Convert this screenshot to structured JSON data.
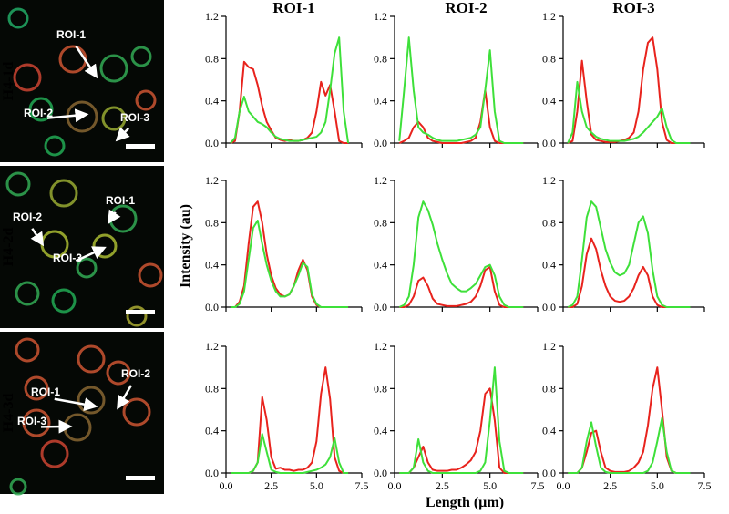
{
  "figure": {
    "y_label": "Intensity (au)",
    "x_label": "Length (µm)",
    "images": [
      {
        "row_label": "H4-1d",
        "rois": [
          "ROI-1",
          "ROI-2",
          "ROI-3"
        ]
      },
      {
        "row_label": "H4-2d",
        "rois": [
          "ROI-1",
          "ROI-2",
          "ROI-3"
        ]
      },
      {
        "row_label": "H4-3d",
        "rois": [
          "ROI-1",
          "ROI-2",
          "ROI-3"
        ]
      }
    ]
  },
  "chart_data": [
    {
      "type": "line",
      "title": "ROI-1",
      "x": [
        0.25,
        0.5,
        0.75,
        1,
        1.25,
        1.5,
        1.75,
        2,
        2.25,
        2.5,
        2.75,
        3,
        3.25,
        3.5,
        3.75,
        4,
        4.25,
        4.5,
        4.75,
        5,
        5.25,
        5.5,
        5.75,
        6,
        6.25,
        6.5,
        6.75
      ],
      "series": [
        {
          "color": "#e8231d",
          "values": [
            0,
            0.02,
            0.3,
            0.77,
            0.72,
            0.7,
            0.55,
            0.35,
            0.2,
            0.12,
            0.05,
            0.03,
            0.02,
            0.03,
            0.02,
            0.02,
            0.03,
            0.05,
            0.1,
            0.3,
            0.58,
            0.45,
            0.55,
            0.3,
            0.02,
            0,
            0
          ]
        },
        {
          "color": "#3ee03a",
          "values": [
            0,
            0.05,
            0.3,
            0.44,
            0.3,
            0.25,
            0.2,
            0.18,
            0.15,
            0.1,
            0.06,
            0.04,
            0.03,
            0.02,
            0.02,
            0.02,
            0.03,
            0.04,
            0.05,
            0.06,
            0.1,
            0.2,
            0.5,
            0.85,
            1.0,
            0.3,
            0
          ]
        }
      ],
      "xlim": [
        0,
        7.5
      ],
      "ylim": [
        0,
        1.2
      ],
      "xticks": [
        0,
        2.5,
        5,
        7.5
      ],
      "yticks": [
        {
          "value": 0,
          "label": "0.0"
        },
        0.4,
        0.8,
        1.2
      ]
    },
    {
      "type": "line",
      "title": "ROI-2",
      "x": [
        0.25,
        0.5,
        0.75,
        1,
        1.25,
        1.5,
        1.75,
        2,
        2.25,
        2.5,
        2.75,
        3,
        3.25,
        3.5,
        3.75,
        4,
        4.25,
        4.5,
        4.75,
        5,
        5.25,
        5.5,
        5.75,
        6,
        6.25,
        6.5,
        6.75
      ],
      "series": [
        {
          "color": "#e8231d",
          "values": [
            0,
            0.02,
            0.05,
            0.15,
            0.2,
            0.15,
            0.05,
            0.02,
            0.01,
            0,
            0,
            0,
            0,
            0,
            0.01,
            0.02,
            0.05,
            0.2,
            0.5,
            0.15,
            0.02,
            0,
            0,
            0,
            0,
            0,
            0
          ]
        },
        {
          "color": "#3ee03a",
          "values": [
            0.02,
            0.5,
            1.0,
            0.5,
            0.15,
            0.1,
            0.08,
            0.05,
            0.03,
            0.02,
            0.02,
            0.02,
            0.02,
            0.03,
            0.04,
            0.05,
            0.08,
            0.15,
            0.5,
            0.88,
            0.3,
            0.02,
            0,
            0,
            0,
            0,
            0
          ]
        }
      ],
      "xlim": [
        0,
        7.5
      ],
      "ylim": [
        0,
        1.2
      ],
      "xticks": [
        0,
        2.5,
        5,
        7.5
      ],
      "yticks": [
        {
          "value": 0,
          "label": "0.0"
        },
        0.4,
        0.8,
        1.2
      ]
    },
    {
      "type": "line",
      "title": "ROI-3",
      "x": [
        0.25,
        0.5,
        0.75,
        1,
        1.25,
        1.5,
        1.75,
        2,
        2.25,
        2.5,
        2.75,
        3,
        3.25,
        3.5,
        3.75,
        4,
        4.25,
        4.5,
        4.75,
        5,
        5.25,
        5.5,
        5.75,
        6,
        6.25,
        6.5,
        6.75
      ],
      "series": [
        {
          "color": "#e8231d",
          "values": [
            0,
            0.02,
            0.3,
            0.78,
            0.4,
            0.08,
            0.03,
            0.02,
            0.01,
            0.01,
            0.01,
            0.02,
            0.03,
            0.05,
            0.1,
            0.3,
            0.7,
            0.95,
            1.0,
            0.7,
            0.2,
            0.03,
            0,
            0,
            0,
            0,
            0
          ]
        },
        {
          "color": "#3ee03a",
          "values": [
            0,
            0.1,
            0.58,
            0.3,
            0.15,
            0.1,
            0.06,
            0.04,
            0.03,
            0.02,
            0.02,
            0.02,
            0.02,
            0.03,
            0.04,
            0.06,
            0.1,
            0.15,
            0.2,
            0.25,
            0.33,
            0.15,
            0.03,
            0,
            0,
            0,
            0
          ]
        }
      ],
      "xlim": [
        0,
        7.5
      ],
      "ylim": [
        0,
        1.2
      ],
      "xticks": [
        0,
        2.5,
        5,
        7.5
      ],
      "yticks": [
        {
          "value": 0,
          "label": "0.0"
        },
        0.4,
        0.8,
        1.2
      ]
    },
    {
      "type": "line",
      "x": [
        0.25,
        0.5,
        0.75,
        1,
        1.25,
        1.5,
        1.75,
        2,
        2.25,
        2.5,
        2.75,
        3,
        3.25,
        3.5,
        3.75,
        4,
        4.25,
        4.5,
        4.75,
        5,
        5.25,
        5.5,
        5.75,
        6,
        6.25,
        6.5,
        6.75
      ],
      "series": [
        {
          "color": "#e8231d",
          "values": [
            0,
            0,
            0.05,
            0.2,
            0.6,
            0.95,
            1.0,
            0.8,
            0.5,
            0.3,
            0.18,
            0.12,
            0.1,
            0.12,
            0.2,
            0.35,
            0.45,
            0.35,
            0.1,
            0.02,
            0,
            0,
            0,
            0,
            0,
            0,
            0
          ]
        },
        {
          "color": "#3ee03a",
          "values": [
            0,
            0,
            0.03,
            0.15,
            0.45,
            0.75,
            0.82,
            0.6,
            0.4,
            0.25,
            0.15,
            0.1,
            0.1,
            0.12,
            0.2,
            0.3,
            0.42,
            0.38,
            0.12,
            0.03,
            0,
            0,
            0,
            0,
            0,
            0,
            0
          ]
        }
      ],
      "xlim": [
        0,
        7.5
      ],
      "ylim": [
        0,
        1.2
      ],
      "xticks": [
        0,
        2.5,
        5,
        7.5
      ],
      "yticks": [
        {
          "value": 0,
          "label": "0.0"
        },
        0.4,
        0.8,
        1.2
      ]
    },
    {
      "type": "line",
      "x": [
        0.25,
        0.5,
        0.75,
        1,
        1.25,
        1.5,
        1.75,
        2,
        2.25,
        2.5,
        2.75,
        3,
        3.25,
        3.5,
        3.75,
        4,
        4.25,
        4.5,
        4.75,
        5,
        5.25,
        5.5,
        5.75,
        6,
        6.25,
        6.5,
        6.75
      ],
      "series": [
        {
          "color": "#e8231d",
          "values": [
            0,
            0,
            0.02,
            0.1,
            0.25,
            0.28,
            0.2,
            0.08,
            0.03,
            0.02,
            0.01,
            0.01,
            0.01,
            0.02,
            0.03,
            0.05,
            0.1,
            0.2,
            0.35,
            0.38,
            0.15,
            0.02,
            0,
            0,
            0,
            0,
            0
          ]
        },
        {
          "color": "#3ee03a",
          "values": [
            0,
            0.02,
            0.1,
            0.4,
            0.85,
            1.0,
            0.92,
            0.78,
            0.6,
            0.45,
            0.32,
            0.22,
            0.18,
            0.15,
            0.15,
            0.18,
            0.22,
            0.3,
            0.38,
            0.4,
            0.3,
            0.1,
            0.02,
            0,
            0,
            0,
            0
          ]
        }
      ],
      "xlim": [
        0,
        7.5
      ],
      "ylim": [
        0,
        1.2
      ],
      "xticks": [
        0,
        2.5,
        5,
        7.5
      ],
      "yticks": [
        {
          "value": 0,
          "label": "0.0"
        },
        0.4,
        0.8,
        1.2
      ]
    },
    {
      "type": "line",
      "x": [
        0.25,
        0.5,
        0.75,
        1,
        1.25,
        1.5,
        1.75,
        2,
        2.25,
        2.5,
        2.75,
        3,
        3.25,
        3.5,
        3.75,
        4,
        4.25,
        4.5,
        4.75,
        5,
        5.25,
        5.5,
        5.75,
        6,
        6.25,
        6.5,
        6.75
      ],
      "series": [
        {
          "color": "#e8231d",
          "values": [
            0,
            0,
            0.03,
            0.2,
            0.5,
            0.65,
            0.55,
            0.35,
            0.2,
            0.1,
            0.06,
            0.05,
            0.06,
            0.1,
            0.18,
            0.3,
            0.38,
            0.3,
            0.1,
            0.02,
            0,
            0,
            0,
            0,
            0,
            0,
            0
          ]
        },
        {
          "color": "#3ee03a",
          "values": [
            0,
            0.02,
            0.1,
            0.45,
            0.85,
            1.0,
            0.95,
            0.75,
            0.55,
            0.42,
            0.33,
            0.3,
            0.32,
            0.4,
            0.6,
            0.8,
            0.86,
            0.7,
            0.35,
            0.1,
            0.02,
            0,
            0,
            0,
            0,
            0,
            0
          ]
        }
      ],
      "xlim": [
        0,
        7.5
      ],
      "ylim": [
        0,
        1.2
      ],
      "xticks": [
        0,
        2.5,
        5,
        7.5
      ],
      "yticks": [
        {
          "value": 0,
          "label": "0.0"
        },
        0.4,
        0.8,
        1.2
      ]
    },
    {
      "type": "line",
      "x": [
        0.25,
        0.5,
        0.75,
        1,
        1.25,
        1.5,
        1.75,
        2,
        2.25,
        2.5,
        2.75,
        3,
        3.25,
        3.5,
        3.75,
        4,
        4.25,
        4.5,
        4.75,
        5,
        5.25,
        5.5,
        5.75,
        6,
        6.25,
        6.5,
        6.75
      ],
      "series": [
        {
          "color": "#e8231d",
          "values": [
            0,
            0,
            0,
            0,
            0,
            0.02,
            0.1,
            0.72,
            0.5,
            0.15,
            0.04,
            0.05,
            0.03,
            0.03,
            0.02,
            0.03,
            0.03,
            0.05,
            0.1,
            0.3,
            0.75,
            1.0,
            0.7,
            0.15,
            0.02,
            0,
            0
          ]
        },
        {
          "color": "#3ee03a",
          "values": [
            0,
            0,
            0,
            0,
            0,
            0.02,
            0.1,
            0.37,
            0.2,
            0.03,
            0.01,
            0,
            0,
            0,
            0,
            0,
            0,
            0.01,
            0.02,
            0.03,
            0.05,
            0.08,
            0.15,
            0.33,
            0.1,
            0,
            0
          ]
        }
      ],
      "xlim": [
        0,
        7.5
      ],
      "ylim": [
        0,
        1.2
      ],
      "xticks": [
        {
          "value": 0,
          "label": "0.0"
        },
        2.5,
        {
          "value": 5,
          "label": "5.0"
        },
        7.5
      ],
      "yticks": [
        {
          "value": 0,
          "label": "0.0"
        },
        0.4,
        0.8,
        1.2
      ]
    },
    {
      "type": "line",
      "x": [
        0.25,
        0.5,
        0.75,
        1,
        1.25,
        1.5,
        1.75,
        2,
        2.25,
        2.5,
        2.75,
        3,
        3.25,
        3.5,
        3.75,
        4,
        4.25,
        4.5,
        4.75,
        5,
        5.25,
        5.5,
        5.75,
        6,
        6.25,
        6.5,
        6.75
      ],
      "series": [
        {
          "color": "#e8231d",
          "values": [
            0,
            0,
            0,
            0.05,
            0.15,
            0.25,
            0.1,
            0.03,
            0.02,
            0.02,
            0.02,
            0.03,
            0.03,
            0.05,
            0.08,
            0.12,
            0.2,
            0.4,
            0.75,
            0.8,
            0.5,
            0.05,
            0,
            0,
            0,
            0,
            0
          ]
        },
        {
          "color": "#3ee03a",
          "values": [
            0,
            0,
            0,
            0.05,
            0.32,
            0.1,
            0.02,
            0,
            0,
            0,
            0,
            0,
            0,
            0,
            0,
            0,
            0,
            0.02,
            0.1,
            0.5,
            1.0,
            0.3,
            0.02,
            0,
            0,
            0,
            0
          ]
        }
      ],
      "xlim": [
        0,
        7.5
      ],
      "ylim": [
        0,
        1.2
      ],
      "xticks": [
        {
          "value": 0,
          "label": "0.0"
        },
        2.5,
        {
          "value": 5,
          "label": "5.0"
        },
        7.5
      ],
      "yticks": [
        {
          "value": 0,
          "label": "0.0"
        },
        0.4,
        0.8,
        1.2
      ]
    },
    {
      "type": "line",
      "x": [
        0.25,
        0.5,
        0.75,
        1,
        1.25,
        1.5,
        1.75,
        2,
        2.25,
        2.5,
        2.75,
        3,
        3.25,
        3.5,
        3.75,
        4,
        4.25,
        4.5,
        4.75,
        5,
        5.25,
        5.5,
        5.75,
        6,
        6.25,
        6.5,
        6.75
      ],
      "series": [
        {
          "color": "#e8231d",
          "values": [
            0,
            0,
            0,
            0.05,
            0.2,
            0.38,
            0.4,
            0.2,
            0.05,
            0.02,
            0.01,
            0.01,
            0.01,
            0.02,
            0.05,
            0.1,
            0.2,
            0.45,
            0.8,
            1.0,
            0.6,
            0.15,
            0.02,
            0,
            0,
            0,
            0
          ]
        },
        {
          "color": "#3ee03a",
          "values": [
            0,
            0,
            0,
            0.05,
            0.3,
            0.48,
            0.25,
            0.05,
            0.01,
            0,
            0,
            0,
            0,
            0,
            0,
            0,
            0,
            0.02,
            0.1,
            0.3,
            0.52,
            0.2,
            0.02,
            0,
            0,
            0,
            0
          ]
        }
      ],
      "xlim": [
        0,
        7.5
      ],
      "ylim": [
        0,
        1.2
      ],
      "xticks": [
        {
          "value": 0,
          "label": "0.0"
        },
        2.5,
        {
          "value": 5,
          "label": "5.0"
        },
        7.5
      ],
      "yticks": [
        {
          "value": 0,
          "label": "0.0"
        },
        0.4,
        0.8,
        1.2
      ]
    }
  ]
}
